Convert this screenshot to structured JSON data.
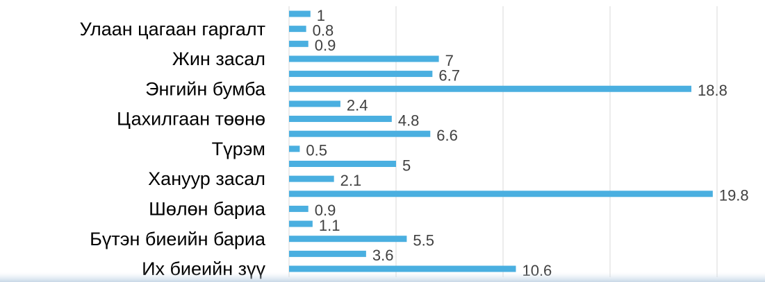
{
  "chart_data": {
    "type": "barh",
    "categories": [
      null,
      "Улаан цагаан гаргалт",
      null,
      "Жин засал",
      null,
      "Энгийн бумба",
      null,
      "Цахилгаан төөнө",
      null,
      "Түрэм",
      null,
      "Хануур засал",
      null,
      "Шөлөн бариа",
      null,
      "Бүтэн биеийн бариа",
      null,
      "Их биеийн зүү"
    ],
    "values": [
      1,
      0.8,
      0.9,
      7,
      6.7,
      18.8,
      2.4,
      4.8,
      6.6,
      0.5,
      5,
      2.1,
      19.8,
      0.9,
      1.1,
      5.5,
      3.6,
      10.6
    ],
    "color": "#4aafe0",
    "xlim": [
      0,
      20
    ],
    "xticks": [
      0,
      5,
      10,
      15,
      20
    ],
    "xtick_labels": false,
    "grid": true
  }
}
